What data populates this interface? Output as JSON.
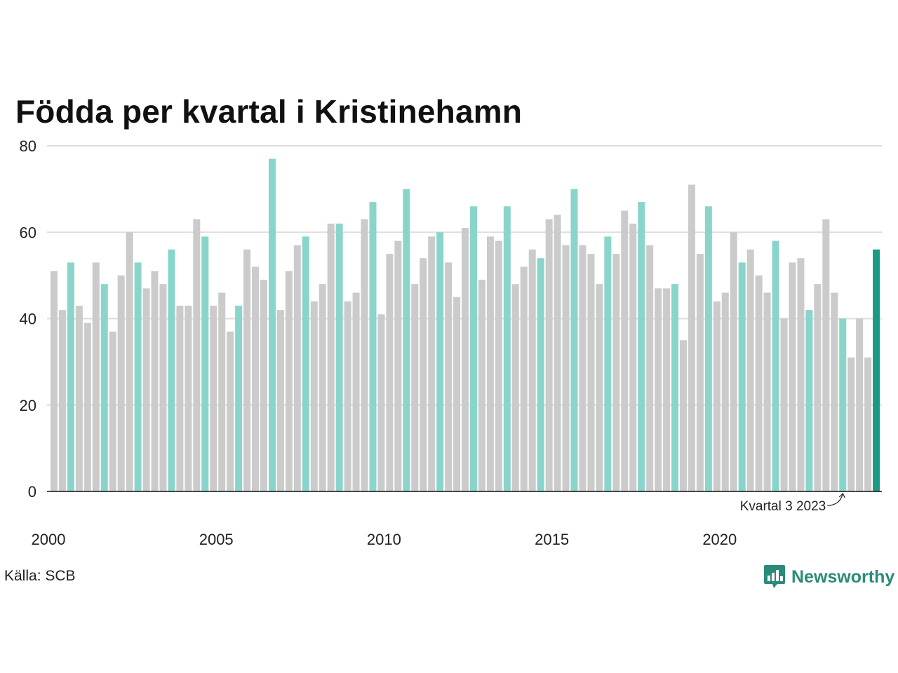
{
  "colors": {
    "bar_default": "#cbcbcb",
    "bar_highlight_quarter": "#8ad5cb",
    "bar_latest": "#1a9a86",
    "grid": "#dddddd",
    "axis": "#111111",
    "brand": "#2c8a7b"
  },
  "source": "Källa: SCB",
  "brand": {
    "name": "Newsworthy",
    "icon": "bar-chart-logo-icon"
  },
  "chart_data": {
    "type": "bar",
    "title": "Födda per kvartal i Kristinehamn",
    "xlabel": "",
    "ylabel": "",
    "ylim": [
      0,
      80
    ],
    "yticks": [
      0,
      20,
      40,
      60,
      80
    ],
    "xticks": [
      "2000",
      "2005",
      "2010",
      "2015",
      "2020"
    ],
    "grid": true,
    "highlight_quarter": 3,
    "annotation": {
      "text": "Kvartal 3 2023",
      "target": "2023 Q3"
    },
    "categories": [
      "2000 Q1",
      "2000 Q2",
      "2000 Q3",
      "2000 Q4",
      "2001 Q1",
      "2001 Q2",
      "2001 Q3",
      "2001 Q4",
      "2002 Q1",
      "2002 Q2",
      "2002 Q3",
      "2002 Q4",
      "2003 Q1",
      "2003 Q2",
      "2003 Q3",
      "2003 Q4",
      "2004 Q1",
      "2004 Q2",
      "2004 Q3",
      "2004 Q4",
      "2005 Q1",
      "2005 Q2",
      "2005 Q3",
      "2005 Q4",
      "2006 Q1",
      "2006 Q2",
      "2006 Q3",
      "2006 Q4",
      "2007 Q1",
      "2007 Q2",
      "2007 Q3",
      "2007 Q4",
      "2008 Q1",
      "2008 Q2",
      "2008 Q3",
      "2008 Q4",
      "2009 Q1",
      "2009 Q2",
      "2009 Q3",
      "2009 Q4",
      "2010 Q1",
      "2010 Q2",
      "2010 Q3",
      "2010 Q4",
      "2011 Q1",
      "2011 Q2",
      "2011 Q3",
      "2011 Q4",
      "2012 Q1",
      "2012 Q2",
      "2012 Q3",
      "2012 Q4",
      "2013 Q1",
      "2013 Q2",
      "2013 Q3",
      "2013 Q4",
      "2014 Q1",
      "2014 Q2",
      "2014 Q3",
      "2014 Q4",
      "2015 Q1",
      "2015 Q2",
      "2015 Q3",
      "2015 Q4",
      "2016 Q1",
      "2016 Q2",
      "2016 Q3",
      "2016 Q4",
      "2017 Q1",
      "2017 Q2",
      "2017 Q3",
      "2017 Q4",
      "2018 Q1",
      "2018 Q2",
      "2018 Q3",
      "2018 Q4",
      "2019 Q1",
      "2019 Q2",
      "2019 Q3",
      "2019 Q4",
      "2020 Q1",
      "2020 Q2",
      "2020 Q3",
      "2020 Q4",
      "2021 Q1",
      "2021 Q2",
      "2021 Q3",
      "2021 Q4",
      "2022 Q1",
      "2022 Q2",
      "2022 Q3",
      "2022 Q4",
      "2023 Q1",
      "2023 Q2",
      "2023 Q3",
      "2023 Q4",
      "2024 Q1",
      "2024 Q2",
      "2024 Q3"
    ],
    "values": [
      51,
      42,
      53,
      43,
      39,
      53,
      48,
      37,
      50,
      60,
      53,
      47,
      51,
      48,
      56,
      43,
      43,
      63,
      59,
      43,
      46,
      37,
      43,
      56,
      52,
      49,
      77,
      42,
      51,
      57,
      59,
      44,
      48,
      62,
      62,
      44,
      46,
      63,
      67,
      41,
      55,
      58,
      70,
      48,
      54,
      59,
      60,
      53,
      45,
      61,
      66,
      49,
      59,
      58,
      66,
      48,
      52,
      56,
      54,
      63,
      64,
      57,
      70,
      57,
      55,
      48,
      59,
      55,
      65,
      62,
      67,
      57,
      47,
      47,
      48,
      35,
      71,
      55,
      66,
      44,
      46,
      60,
      53,
      56,
      50,
      46,
      58,
      40,
      53,
      54,
      42,
      48,
      63,
      46,
      40,
      31,
      40,
      31,
      56
    ]
  }
}
